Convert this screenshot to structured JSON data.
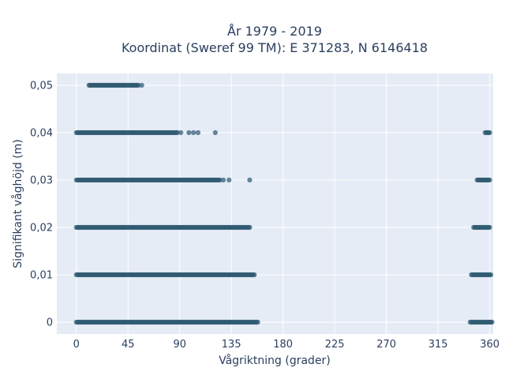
{
  "chart_data": {
    "type": "scatter",
    "title_line1": "År 1979 - 2019",
    "title_line2": "Koordinat (Sweref 99 TM): E 371283, N 6146418",
    "xlabel": "Vågriktning (grader)",
    "ylabel": "Signifikant våghöjd (m)",
    "xlim": [
      -17,
      363
    ],
    "ylim": [
      -0.0025,
      0.0525
    ],
    "x_ticks": [
      0,
      45,
      90,
      135,
      180,
      225,
      270,
      315,
      360
    ],
    "x_tick_labels": [
      "0",
      "45",
      "90",
      "135",
      "180",
      "225",
      "270",
      "315",
      "360"
    ],
    "y_ticks": [
      0,
      0.01,
      0.02,
      0.03,
      0.04,
      0.05
    ],
    "y_tick_labels": [
      "0",
      "0,01",
      "0,02",
      "0,03",
      "0,04",
      "0,05"
    ],
    "marker_color": "#2f5a72",
    "grid": true,
    "background_color": "#e5ecf6",
    "series": [
      {
        "y": 0,
        "dense_ranges": [
          [
            0,
            158
          ],
          [
            343,
            362
          ]
        ],
        "isolated_x": []
      },
      {
        "y": 0.01,
        "dense_ranges": [
          [
            0,
            155
          ],
          [
            344,
            361
          ]
        ],
        "isolated_x": []
      },
      {
        "y": 0.02,
        "dense_ranges": [
          [
            0,
            151
          ],
          [
            346,
            360
          ]
        ],
        "isolated_x": []
      },
      {
        "y": 0.03,
        "dense_ranges": [
          [
            0,
            125
          ],
          [
            349,
            360
          ]
        ],
        "isolated_x": [
          128,
          133,
          151
        ]
      },
      {
        "y": 0.04,
        "dense_ranges": [
          [
            0,
            88
          ],
          [
            356,
            360
          ]
        ],
        "isolated_x": [
          91,
          98,
          102,
          106,
          121
        ]
      },
      {
        "y": 0.05,
        "dense_ranges": [
          [
            11,
            54
          ]
        ],
        "isolated_x": [
          57
        ]
      }
    ]
  }
}
